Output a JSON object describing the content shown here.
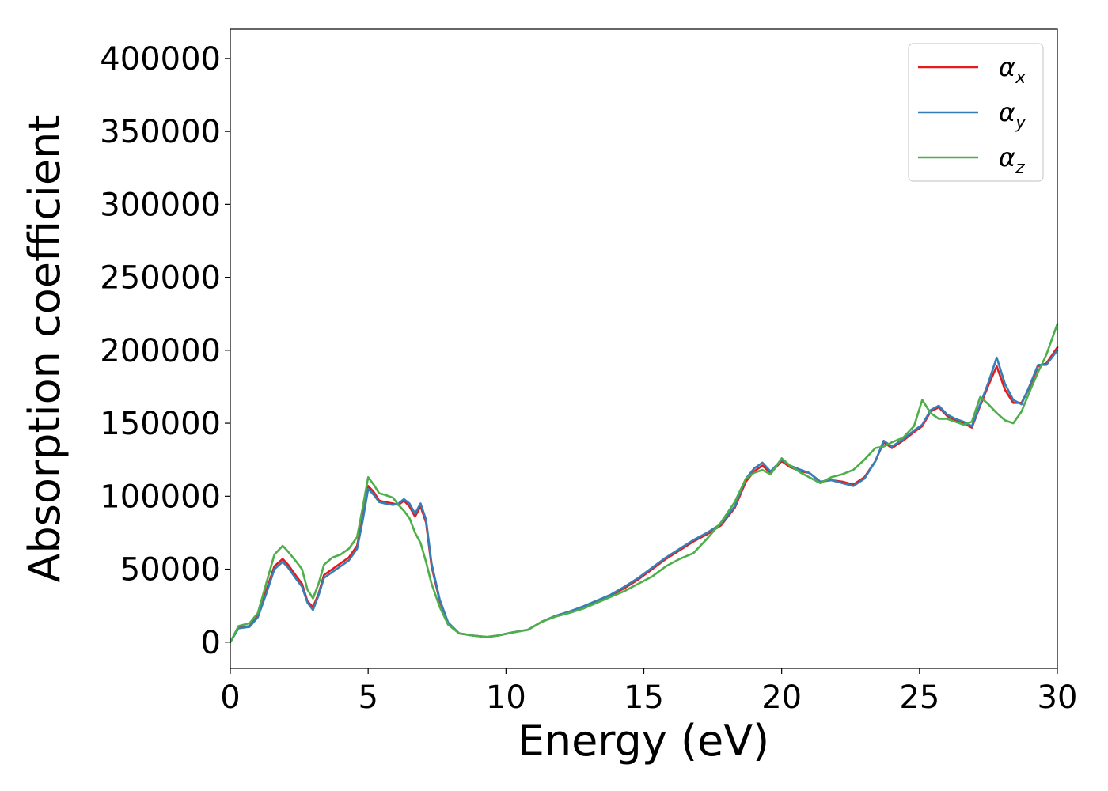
{
  "chart_data": {
    "type": "line",
    "title": "",
    "xlabel": "Energy (eV)",
    "ylabel": "Absorption coefficient",
    "xlim": [
      0,
      30
    ],
    "ylim": [
      -18000,
      420000
    ],
    "xticks": [
      0,
      5,
      10,
      15,
      20,
      25,
      30
    ],
    "yticks": [
      0,
      50000,
      100000,
      150000,
      200000,
      250000,
      300000,
      350000,
      400000
    ],
    "grid": false,
    "legend_position": "top-right",
    "series": [
      {
        "name": "αx",
        "label_base": "α",
        "label_sub": "x",
        "color": "#e41a1c",
        "x": [
          0,
          0.3,
          0.7,
          1.0,
          1.3,
          1.6,
          1.9,
          2.1,
          2.4,
          2.6,
          2.8,
          3.0,
          3.2,
          3.4,
          3.7,
          4.0,
          4.3,
          4.6,
          4.8,
          5.0,
          5.2,
          5.4,
          5.6,
          5.9,
          6.1,
          6.3,
          6.5,
          6.7,
          6.9,
          7.1,
          7.3,
          7.6,
          7.9,
          8.3,
          8.8,
          9.3,
          9.7,
          10.2,
          10.8,
          11.3,
          11.8,
          12.3,
          12.8,
          13.3,
          13.8,
          14.3,
          14.8,
          15.3,
          15.8,
          16.3,
          16.8,
          17.3,
          17.8,
          18.3,
          18.7,
          19.0,
          19.3,
          19.6,
          20.0,
          20.3,
          20.7,
          21.0,
          21.4,
          21.8,
          22.2,
          22.6,
          23.0,
          23.4,
          23.7,
          24.0,
          24.4,
          24.8,
          25.1,
          25.4,
          25.7,
          26.0,
          26.3,
          26.6,
          26.9,
          27.2,
          27.5,
          27.8,
          28.1,
          28.4,
          28.7,
          29.0,
          29.3,
          29.6,
          30.0
        ],
        "values": [
          0,
          10000,
          11000,
          18000,
          35000,
          52000,
          57000,
          53000,
          45000,
          40000,
          28000,
          24000,
          33000,
          46000,
          50000,
          54000,
          58000,
          66000,
          85000,
          107000,
          103000,
          97000,
          96000,
          95000,
          94000,
          97000,
          93000,
          86000,
          93000,
          82000,
          52000,
          28000,
          13000,
          6000,
          4500,
          3500,
          4500,
          6500,
          8500,
          14000,
          18000,
          21000,
          24000,
          28000,
          32000,
          37000,
          43000,
          50000,
          57000,
          63000,
          69000,
          74000,
          80000,
          92000,
          110000,
          117000,
          121000,
          116000,
          124000,
          120000,
          117000,
          116000,
          110000,
          111000,
          110000,
          108000,
          113000,
          124000,
          137000,
          133000,
          138000,
          144000,
          148000,
          158000,
          161000,
          155000,
          152000,
          150000,
          147000,
          162000,
          176000,
          189000,
          173000,
          164000,
          164000,
          175000,
          189000,
          191000,
          202000
        ]
      },
      {
        "name": "αy",
        "label_base": "α",
        "label_sub": "y",
        "color": "#377eb8",
        "x": [
          0,
          0.3,
          0.7,
          1.0,
          1.3,
          1.6,
          1.9,
          2.1,
          2.4,
          2.6,
          2.8,
          3.0,
          3.2,
          3.4,
          3.7,
          4.0,
          4.3,
          4.6,
          4.8,
          5.0,
          5.2,
          5.4,
          5.6,
          5.9,
          6.1,
          6.3,
          6.5,
          6.7,
          6.9,
          7.1,
          7.3,
          7.6,
          7.9,
          8.3,
          8.8,
          9.3,
          9.7,
          10.2,
          10.8,
          11.3,
          11.8,
          12.3,
          12.8,
          13.3,
          13.8,
          14.3,
          14.8,
          15.3,
          15.8,
          16.3,
          16.8,
          17.3,
          17.8,
          18.3,
          18.7,
          19.0,
          19.3,
          19.6,
          20.0,
          20.3,
          20.7,
          21.0,
          21.4,
          21.8,
          22.2,
          22.6,
          23.0,
          23.4,
          23.7,
          24.0,
          24.4,
          24.8,
          25.1,
          25.4,
          25.7,
          26.0,
          26.3,
          26.6,
          26.9,
          27.2,
          27.5,
          27.8,
          28.1,
          28.4,
          28.7,
          29.0,
          29.3,
          29.6,
          30.0
        ],
        "values": [
          0,
          9500,
          10500,
          17000,
          33000,
          50000,
          55000,
          51000,
          43000,
          38000,
          27000,
          22000,
          32000,
          44000,
          48000,
          52000,
          56000,
          64000,
          83000,
          105000,
          101000,
          96000,
          95000,
          94000,
          95000,
          98000,
          95000,
          88000,
          95000,
          84000,
          54000,
          29000,
          13500,
          6000,
          4500,
          3500,
          4500,
          6500,
          8500,
          14000,
          18000,
          21000,
          24500,
          28500,
          32500,
          38000,
          44000,
          51000,
          58000,
          64000,
          70000,
          75000,
          81000,
          93000,
          112000,
          119000,
          123000,
          117000,
          125000,
          121000,
          118000,
          116000,
          110000,
          111000,
          109000,
          107000,
          112000,
          124000,
          138000,
          134000,
          139000,
          145000,
          149000,
          159000,
          162000,
          156000,
          153000,
          151000,
          148000,
          163000,
          178000,
          195000,
          177000,
          166000,
          163000,
          176000,
          190000,
          190000,
          200000
        ]
      },
      {
        "name": "αz",
        "label_base": "α",
        "label_sub": "z",
        "color": "#4daf4a",
        "x": [
          0,
          0.3,
          0.7,
          1.0,
          1.3,
          1.6,
          1.9,
          2.1,
          2.4,
          2.6,
          2.8,
          3.0,
          3.2,
          3.4,
          3.7,
          4.0,
          4.3,
          4.6,
          4.8,
          5.0,
          5.2,
          5.4,
          5.6,
          5.9,
          6.1,
          6.3,
          6.5,
          6.7,
          6.9,
          7.1,
          7.3,
          7.6,
          7.9,
          8.3,
          8.8,
          9.3,
          9.7,
          10.2,
          10.8,
          11.3,
          11.8,
          12.3,
          12.8,
          13.3,
          13.8,
          14.3,
          14.8,
          15.3,
          15.8,
          16.3,
          16.8,
          17.3,
          17.8,
          18.3,
          18.7,
          19.0,
          19.3,
          19.6,
          20.0,
          20.3,
          20.7,
          21.0,
          21.4,
          21.8,
          22.2,
          22.6,
          23.0,
          23.4,
          23.7,
          24.0,
          24.4,
          24.8,
          25.1,
          25.4,
          25.7,
          26.0,
          26.3,
          26.6,
          26.9,
          27.2,
          27.5,
          27.8,
          28.1,
          28.4,
          28.7,
          29.0,
          29.3,
          29.6,
          30.0
        ],
        "values": [
          0,
          11000,
          13000,
          20000,
          40000,
          60000,
          66000,
          62000,
          55000,
          50000,
          36000,
          30000,
          40000,
          53000,
          58000,
          60000,
          64000,
          72000,
          92000,
          113000,
          108000,
          102000,
          101000,
          99000,
          94000,
          90000,
          85000,
          75000,
          68000,
          55000,
          40000,
          24000,
          12000,
          6000,
          4500,
          3500,
          4500,
          6500,
          8500,
          14000,
          17500,
          20000,
          23000,
          27000,
          31000,
          35000,
          40000,
          45000,
          52000,
          57000,
          61000,
          71000,
          82000,
          96000,
          112000,
          116000,
          118000,
          115000,
          126000,
          121000,
          116000,
          113000,
          109000,
          113000,
          115000,
          118000,
          125000,
          133000,
          134000,
          137000,
          140000,
          148000,
          166000,
          157000,
          153000,
          153000,
          151000,
          149000,
          151000,
          168000,
          163000,
          157000,
          152000,
          150000,
          158000,
          172000,
          185000,
          197000,
          218000
        ]
      }
    ]
  }
}
